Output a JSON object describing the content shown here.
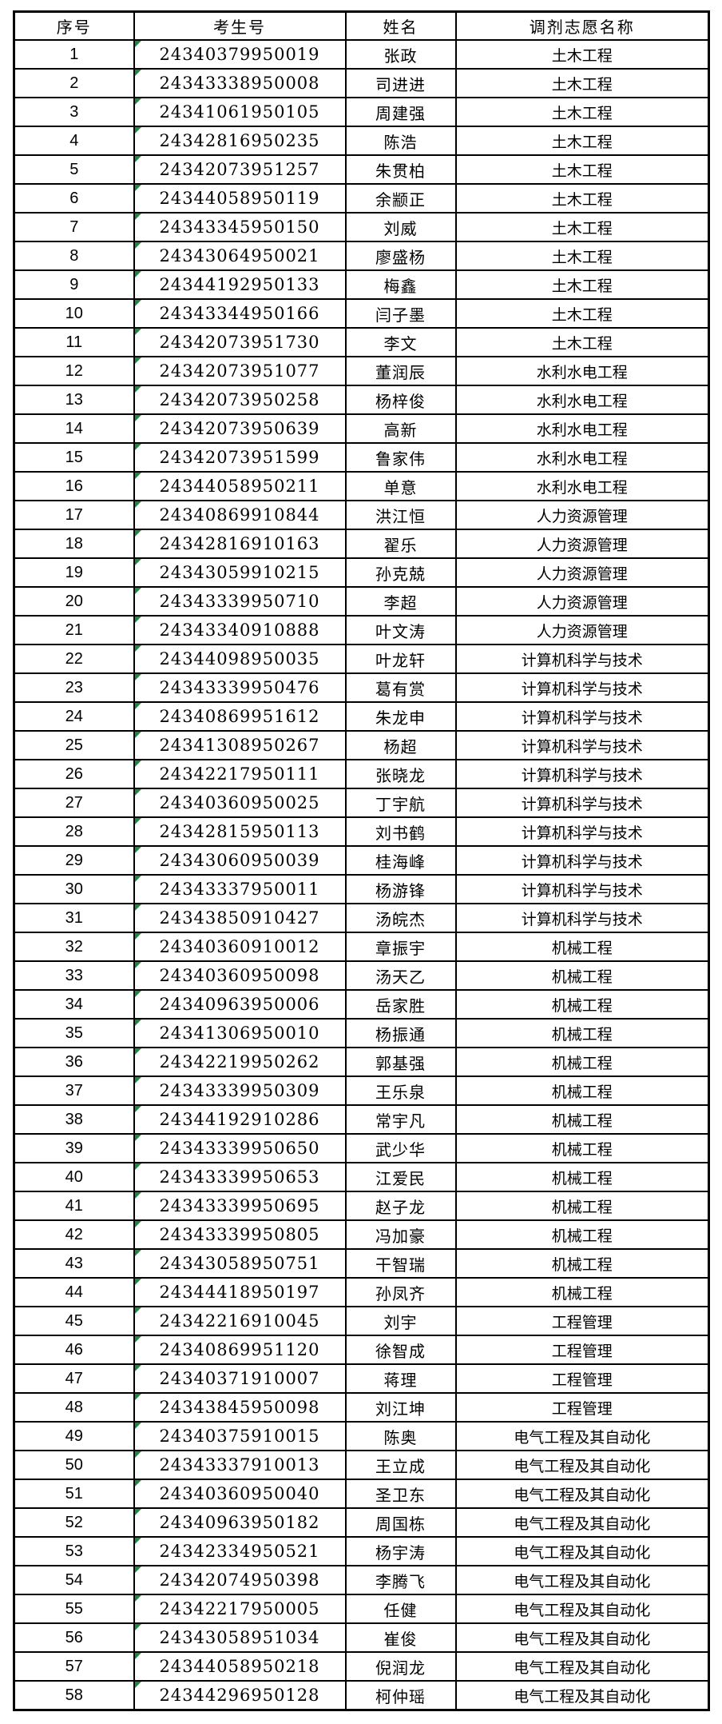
{
  "table": {
    "flag_color": "#1f8a3d",
    "border_color": "#000000",
    "headers": [
      "序号",
      "考生号",
      "姓名",
      "调剂志愿名称"
    ],
    "column_keys": [
      "index",
      "exam_no",
      "name",
      "major"
    ],
    "rows": [
      [
        "1",
        "24340379950019",
        "张政",
        "土木工程"
      ],
      [
        "2",
        "24343338950008",
        "司进进",
        "土木工程"
      ],
      [
        "3",
        "24341061950105",
        "周建强",
        "土木工程"
      ],
      [
        "4",
        "24342816950235",
        "陈浩",
        "土木工程"
      ],
      [
        "5",
        "24342073951257",
        "朱贯柏",
        "土木工程"
      ],
      [
        "6",
        "24344058950119",
        "余颛正",
        "土木工程"
      ],
      [
        "7",
        "24343345950150",
        "刘威",
        "土木工程"
      ],
      [
        "8",
        "24343064950021",
        "廖盛杨",
        "土木工程"
      ],
      [
        "9",
        "24344192950133",
        "梅鑫",
        "土木工程"
      ],
      [
        "10",
        "24343344950166",
        "闫子墨",
        "土木工程"
      ],
      [
        "11",
        "24342073951730",
        "李文",
        "土木工程"
      ],
      [
        "12",
        "24342073951077",
        "董润辰",
        "水利水电工程"
      ],
      [
        "13",
        "24342073950258",
        "杨梓俊",
        "水利水电工程"
      ],
      [
        "14",
        "24342073950639",
        "高新",
        "水利水电工程"
      ],
      [
        "15",
        "24342073951599",
        "鲁家伟",
        "水利水电工程"
      ],
      [
        "16",
        "24344058950211",
        "单意",
        "水利水电工程"
      ],
      [
        "17",
        "24340869910844",
        "洪江恒",
        "人力资源管理"
      ],
      [
        "18",
        "24342816910163",
        "翟乐",
        "人力资源管理"
      ],
      [
        "19",
        "24343059910215",
        "孙克兢",
        "人力资源管理"
      ],
      [
        "20",
        "24343339950710",
        "李超",
        "人力资源管理"
      ],
      [
        "21",
        "24343340910888",
        "叶文涛",
        "人力资源管理"
      ],
      [
        "22",
        "24344098950035",
        "叶龙轩",
        "计算机科学与技术"
      ],
      [
        "23",
        "24343339950476",
        "葛有赏",
        "计算机科学与技术"
      ],
      [
        "24",
        "24340869951612",
        "朱龙申",
        "计算机科学与技术"
      ],
      [
        "25",
        "24341308950267",
        "杨超",
        "计算机科学与技术"
      ],
      [
        "26",
        "24342217950111",
        "张晓龙",
        "计算机科学与技术"
      ],
      [
        "27",
        "24340360950025",
        "丁宇航",
        "计算机科学与技术"
      ],
      [
        "28",
        "24342815950113",
        "刘书鹤",
        "计算机科学与技术"
      ],
      [
        "29",
        "24343060950039",
        "桂海峰",
        "计算机科学与技术"
      ],
      [
        "30",
        "24343337950011",
        "杨游锋",
        "计算机科学与技术"
      ],
      [
        "31",
        "24343850910427",
        "汤皖杰",
        "计算机科学与技术"
      ],
      [
        "32",
        "24340360910012",
        "章振宇",
        "机械工程"
      ],
      [
        "33",
        "24340360950098",
        "汤天乙",
        "机械工程"
      ],
      [
        "34",
        "24340963950006",
        "岳家胜",
        "机械工程"
      ],
      [
        "35",
        "24341306950010",
        "杨振通",
        "机械工程"
      ],
      [
        "36",
        "24342219950262",
        "郭基强",
        "机械工程"
      ],
      [
        "37",
        "24343339950309",
        "王乐泉",
        "机械工程"
      ],
      [
        "38",
        "24344192910286",
        "常宇凡",
        "机械工程"
      ],
      [
        "39",
        "24343339950650",
        "武少华",
        "机械工程"
      ],
      [
        "40",
        "24343339950653",
        "江爱民",
        "机械工程"
      ],
      [
        "41",
        "24343339950695",
        "赵子龙",
        "机械工程"
      ],
      [
        "42",
        "24343339950805",
        "冯加豪",
        "机械工程"
      ],
      [
        "43",
        "24343058950751",
        "干智瑞",
        "机械工程"
      ],
      [
        "44",
        "24344418950197",
        "孙凤齐",
        "机械工程"
      ],
      [
        "45",
        "24342216910045",
        "刘宇",
        "工程管理"
      ],
      [
        "46",
        "24340869951120",
        "徐智成",
        "工程管理"
      ],
      [
        "47",
        "24340371910007",
        "蒋理",
        "工程管理"
      ],
      [
        "48",
        "24343845950098",
        "刘江坤",
        "工程管理"
      ],
      [
        "49",
        "24340375910015",
        "陈奥",
        "电气工程及其自动化"
      ],
      [
        "50",
        "24343337910013",
        "王立成",
        "电气工程及其自动化"
      ],
      [
        "51",
        "24340360950040",
        "圣卫东",
        "电气工程及其自动化"
      ],
      [
        "52",
        "24340963950182",
        "周国栋",
        "电气工程及其自动化"
      ],
      [
        "53",
        "24342334950521",
        "杨宇涛",
        "电气工程及其自动化"
      ],
      [
        "54",
        "24342074950398",
        "李腾飞",
        "电气工程及其自动化"
      ],
      [
        "55",
        "24342217950005",
        "任健",
        "电气工程及其自动化"
      ],
      [
        "56",
        "24343058951034",
        "崔俊",
        "电气工程及其自动化"
      ],
      [
        "57",
        "24344058950218",
        "倪润龙",
        "电气工程及其自动化"
      ],
      [
        "58",
        "24344296950128",
        "柯仲瑶",
        "电气工程及其自动化"
      ]
    ]
  }
}
